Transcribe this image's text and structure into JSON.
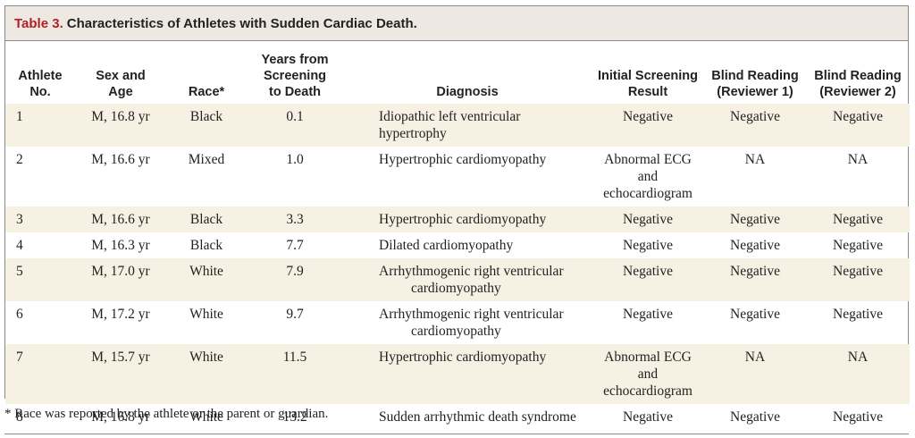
{
  "table": {
    "label": "Table 3.",
    "title": "Characteristics of Athletes with Sudden Cardiac Death.",
    "headers": {
      "athlete": [
        "Athlete",
        "No."
      ],
      "sex_age": [
        "Sex and",
        "Age"
      ],
      "race": [
        "Race*"
      ],
      "years": [
        "Years from",
        "Screening",
        "to Death"
      ],
      "diagnosis": [
        "Diagnosis"
      ],
      "initial": [
        "Initial Screening",
        "Result"
      ],
      "blind1": [
        "Blind Reading",
        "(Reviewer 1)"
      ],
      "blind2": [
        "Blind Reading",
        "(Reviewer 2)"
      ]
    },
    "rows": [
      {
        "no": "1",
        "sex_age": "M, 16.8 yr",
        "race": "Black",
        "years": "0.1",
        "diagnosis": [
          "Idiopathic left ventricular hypertrophy"
        ],
        "initial": [
          "Negative"
        ],
        "blind1": "Negative",
        "blind2": "Negative"
      },
      {
        "no": "2",
        "sex_age": "M, 16.6 yr",
        "race": "Mixed",
        "years": "1.0",
        "diagnosis": [
          "Hypertrophic cardiomyopathy"
        ],
        "initial": [
          "Abnormal ECG and",
          "echocardiogram"
        ],
        "blind1": "NA",
        "blind2": "NA"
      },
      {
        "no": "3",
        "sex_age": "M, 16.6 yr",
        "race": "Black",
        "years": "3.3",
        "diagnosis": [
          "Hypertrophic cardiomyopathy"
        ],
        "initial": [
          "Negative"
        ],
        "blind1": "Negative",
        "blind2": "Negative"
      },
      {
        "no": "4",
        "sex_age": "M, 16.3 yr",
        "race": "Black",
        "years": "7.7",
        "diagnosis": [
          "Dilated cardiomyopathy"
        ],
        "initial": [
          "Negative"
        ],
        "blind1": "Negative",
        "blind2": "Negative"
      },
      {
        "no": "5",
        "sex_age": "M, 17.0 yr",
        "race": "White",
        "years": "7.9",
        "diagnosis": [
          "Arrhythmogenic right ventricular",
          "cardiomyopathy"
        ],
        "initial": [
          "Negative"
        ],
        "blind1": "Negative",
        "blind2": "Negative"
      },
      {
        "no": "6",
        "sex_age": "M, 17.2 yr",
        "race": "White",
        "years": "9.7",
        "diagnosis": [
          "Arrhythmogenic right ventricular",
          "cardiomyopathy"
        ],
        "initial": [
          "Negative"
        ],
        "blind1": "Negative",
        "blind2": "Negative"
      },
      {
        "no": "7",
        "sex_age": "M, 15.7 yr",
        "race": "White",
        "years": "11.5",
        "diagnosis": [
          "Hypertrophic cardiomyopathy"
        ],
        "initial": [
          "Abnormal ECG and",
          "echocardiogram"
        ],
        "blind1": "NA",
        "blind2": "NA"
      },
      {
        "no": "8",
        "sex_age": "M, 16.8 yr",
        "race": "White",
        "years": "13.2",
        "diagnosis": [
          "Sudden arrhythmic death syndrome"
        ],
        "initial": [
          "Negative"
        ],
        "blind1": "Negative",
        "blind2": "Negative"
      }
    ],
    "footnote": "* Race was reported by the athlete or the parent or guardian.",
    "colors": {
      "label": "#b21f24",
      "title_bg": "#ede8e2",
      "row_shade": "#f7f1e4",
      "border": "#8a8a8a"
    }
  }
}
